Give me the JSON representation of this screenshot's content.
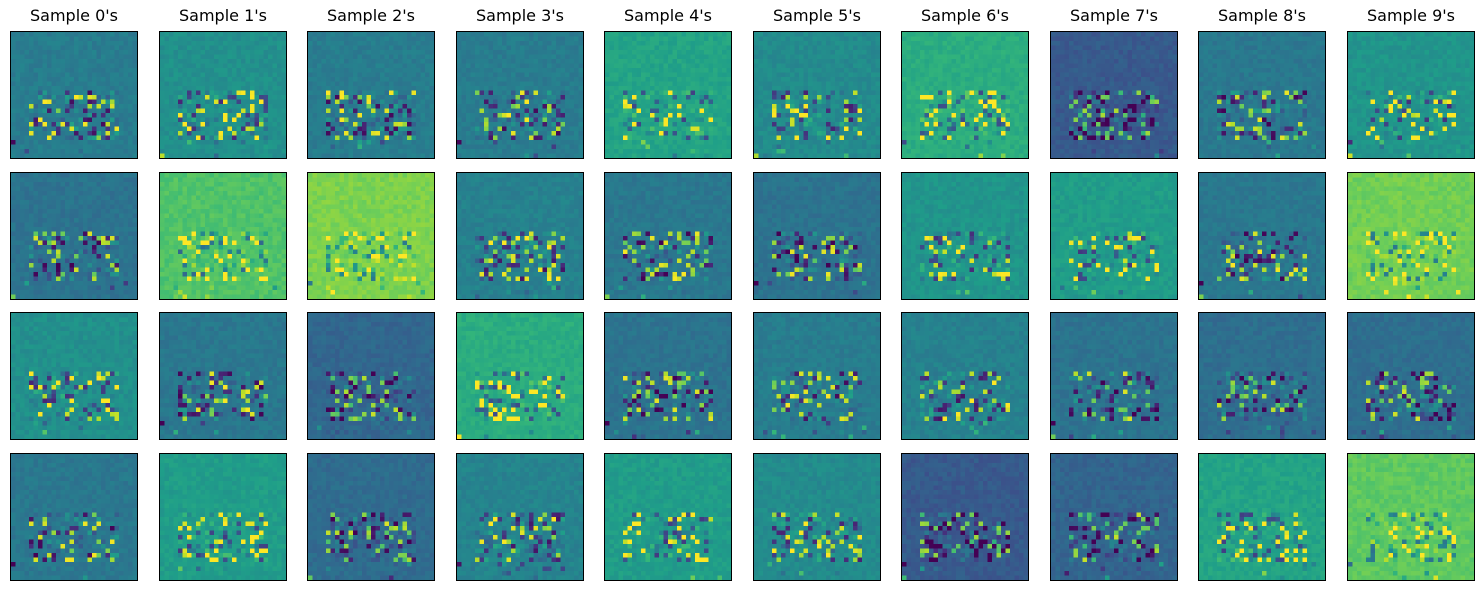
{
  "chart_data": {
    "type": "heatmap",
    "title": "",
    "colormap": "viridis",
    "grid": false,
    "axes_visible": false,
    "rows": 4,
    "columns": [
      {
        "title": "Sample 0's"
      },
      {
        "title": "Sample 1's"
      },
      {
        "title": "Sample 2's"
      },
      {
        "title": "Sample 3's"
      },
      {
        "title": "Sample 4's"
      },
      {
        "title": "Sample 5's"
      },
      {
        "title": "Sample 6's"
      },
      {
        "title": "Sample 7's"
      },
      {
        "title": "Sample 8's"
      },
      {
        "title": "Sample 9's"
      }
    ],
    "image_size": [
      28,
      28
    ],
    "base_levels": [
      [
        0.42,
        0.5,
        0.42,
        0.42,
        0.58,
        0.48,
        0.62,
        0.28,
        0.4,
        0.52
      ],
      [
        0.38,
        0.72,
        0.8,
        0.44,
        0.4,
        0.38,
        0.52,
        0.55,
        0.4,
        0.78
      ],
      [
        0.5,
        0.4,
        0.33,
        0.62,
        0.38,
        0.42,
        0.44,
        0.38,
        0.36,
        0.36
      ],
      [
        0.4,
        0.55,
        0.35,
        0.45,
        0.55,
        0.48,
        0.28,
        0.32,
        0.58,
        0.75
      ]
    ]
  }
}
